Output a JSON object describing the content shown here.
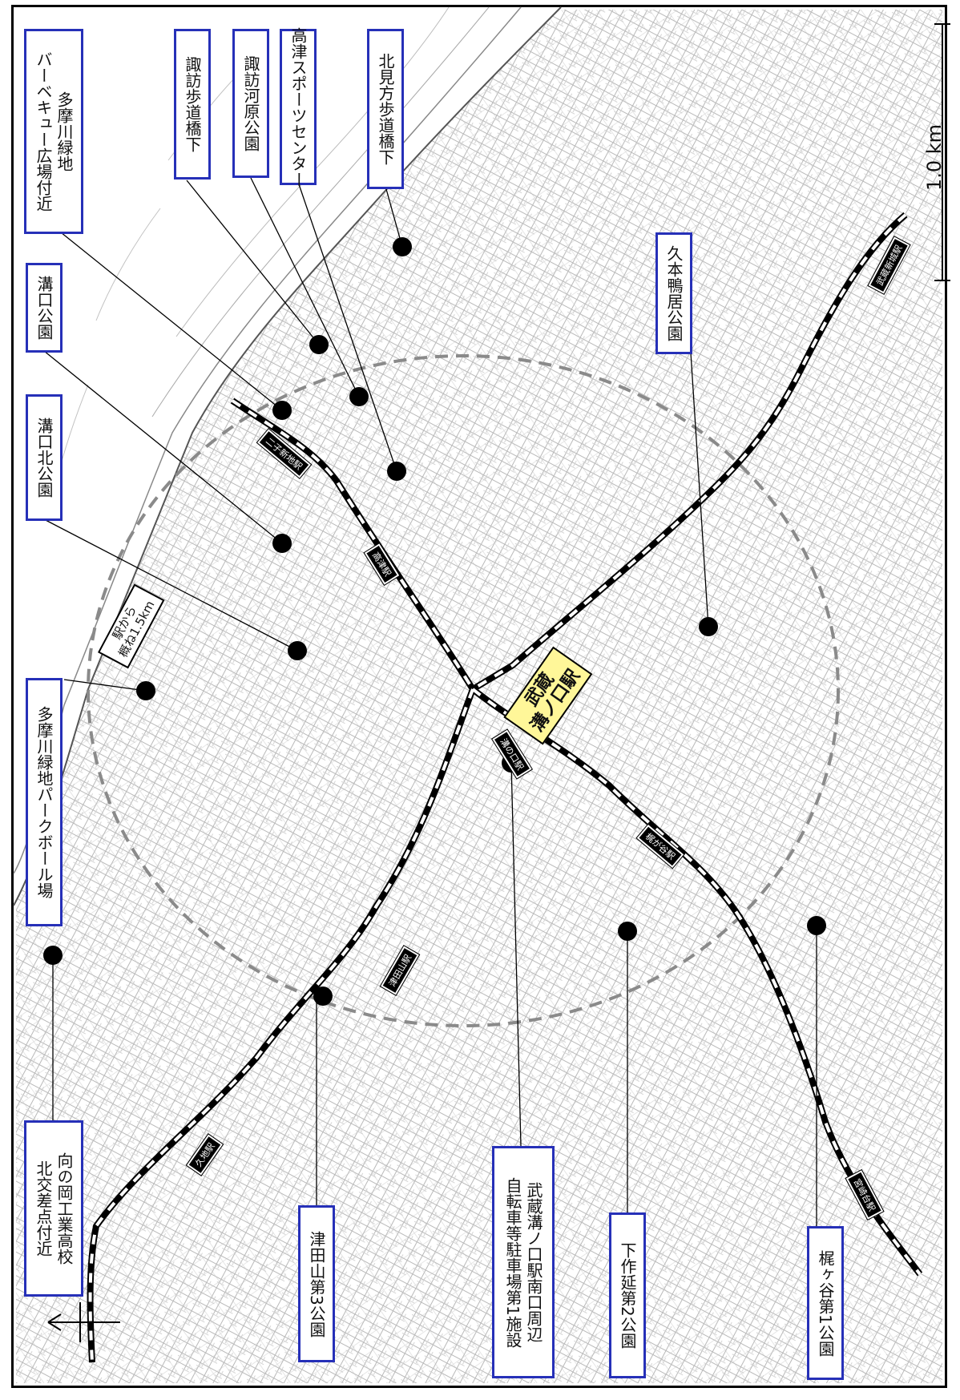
{
  "scale": {
    "label": "1.0 km"
  },
  "main_station": {
    "line1": "武蔵",
    "line2": "溝ノ口駅"
  },
  "distance_note": {
    "line1": "駅から",
    "line2": "概ね1.5km"
  },
  "places": [
    {
      "id": "takatsu-tama-bbq",
      "lines": [
        "多摩川緑地",
        "バーベキュー広場付近"
      ]
    },
    {
      "id": "suwa-hodokyo",
      "lines": [
        "諏訪歩道橋下"
      ]
    },
    {
      "id": "suwagawara-park",
      "lines": [
        "諏訪河原公園"
      ]
    },
    {
      "id": "takatsu-sports",
      "lines": [
        "高津スポーツセンター"
      ]
    },
    {
      "id": "kitamikata-hodokyo",
      "lines": [
        "北見方歩道橋下"
      ]
    },
    {
      "id": "mizonokuchi-park",
      "lines": [
        "溝口公園"
      ]
    },
    {
      "id": "mizonokuchi-kita-park",
      "lines": [
        "溝口北公園"
      ]
    },
    {
      "id": "tama-parkball",
      "lines": [
        "多摩川緑地パークボール場"
      ]
    },
    {
      "id": "kumoto-kamoi-park",
      "lines": [
        "久本鴨居公園"
      ]
    },
    {
      "id": "mukainooka",
      "lines": [
        "向の岡工業高校",
        "北交差点付近"
      ]
    },
    {
      "id": "tsudayama3-park",
      "lines": [
        "津田山第3公園"
      ]
    },
    {
      "id": "south-exit-bike",
      "lines": [
        "武蔵溝ノ口駅南口周辺",
        "自転車等駐車場第1施設"
      ]
    },
    {
      "id": "shimosakunobe2-park",
      "lines": [
        "下作延第2公園"
      ]
    },
    {
      "id": "kajigaya1-park",
      "lines": [
        "梶ヶ谷第1公園"
      ]
    }
  ],
  "stations": [
    {
      "id": "takatsu",
      "label": "高津駅"
    },
    {
      "id": "futako-shinchi",
      "label": "二子新地駅"
    },
    {
      "id": "tsudayama",
      "label": "津田山駅"
    },
    {
      "id": "kuji",
      "label": "久地駅"
    },
    {
      "id": "kajigaya",
      "label": "梶が谷駅"
    },
    {
      "id": "miyazakidai",
      "label": "宮崎台駅"
    },
    {
      "id": "musashi-shinjo",
      "label": "武蔵新城駅"
    },
    {
      "id": "mizonokuchi",
      "label": "溝の口駅"
    }
  ],
  "colors": {
    "label_border": "#2630b8",
    "main_station_bg": "#fff799",
    "marker": "#000000",
    "radius_circle": "#8a8a8a",
    "frame": "#000000"
  },
  "icons": [
    "north-arrow-icon",
    "scale-bar-icon",
    "location-marker-icon"
  ]
}
